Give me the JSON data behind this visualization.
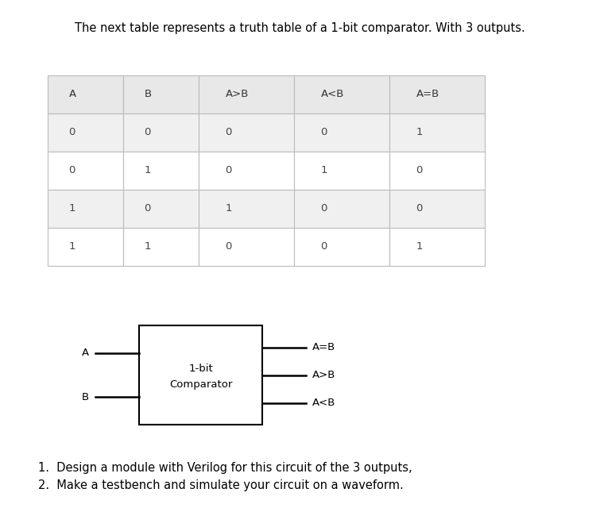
{
  "title": "The next table represents a truth table of a 1-bit comparator. With 3 outputs.",
  "title_fontsize": 10.5,
  "background_color": "#ffffff",
  "table": {
    "headers": [
      "A",
      "B",
      "A>B",
      "A<B",
      "A=B"
    ],
    "rows": [
      [
        "0",
        "0",
        "0",
        "0",
        "1"
      ],
      [
        "0",
        "1",
        "0",
        "1",
        "0"
      ],
      [
        "1",
        "0",
        "1",
        "0",
        "0"
      ],
      [
        "1",
        "1",
        "0",
        "0",
        "1"
      ]
    ],
    "header_bg": "#e8e8e8",
    "row_bg_odd": "#f0f0f0",
    "row_bg_even": "#ffffff",
    "border_color": "#bbbbbb",
    "header_text_color": "#333333",
    "cell_text_color": "#444444",
    "font_size": 9.5
  },
  "diagram": {
    "box_label_line1": "1-bit",
    "box_label_line2": "Comparator",
    "input_A_label": "A",
    "input_B_label": "B",
    "output_labels": [
      "A=B",
      "A>B",
      "A<B"
    ],
    "line_color": "#000000",
    "box_edge_color": "#000000",
    "text_color": "#000000",
    "font_size": 9.5
  },
  "questions": [
    "1.  Design a module with Verilog for this circuit of the 3 outputs,",
    "2.  Make a testbench and simulate your circuit on a waveform."
  ],
  "question_fontsize": 10.5,
  "question_color": "#000000"
}
